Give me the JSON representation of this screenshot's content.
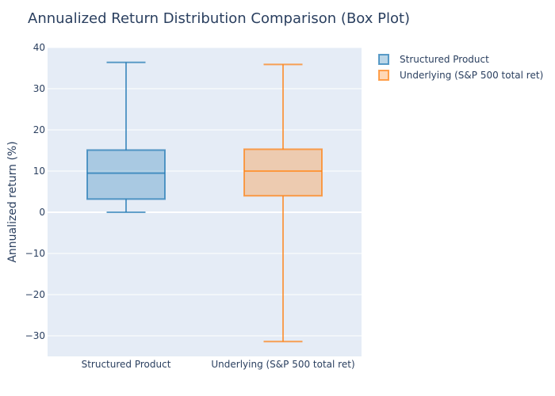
{
  "chart_data": {
    "type": "box",
    "title": "Annualized Return Distribution Comparison (Box Plot)",
    "xlabel": "",
    "ylabel": "Annualized return (%)",
    "ylim": [
      -35,
      40
    ],
    "yticks": [
      -30,
      -20,
      -10,
      0,
      10,
      20,
      30,
      40
    ],
    "grid": true,
    "legend_position": "top-right",
    "series": [
      {
        "name": "Structured Product",
        "category": "Structured Product",
        "min": 0,
        "q1": 3.2,
        "median": 9.5,
        "q3": 15.1,
        "max": 36.4,
        "color": "#1f77b4"
      },
      {
        "name": "Underlying (S&P 500 total ret)",
        "category": "Underlying (S&P 500 total ret)",
        "min": -31.4,
        "q1": 4.0,
        "median": 10.0,
        "q3": 15.3,
        "max": 35.9,
        "color": "#ff7f0e"
      }
    ]
  }
}
